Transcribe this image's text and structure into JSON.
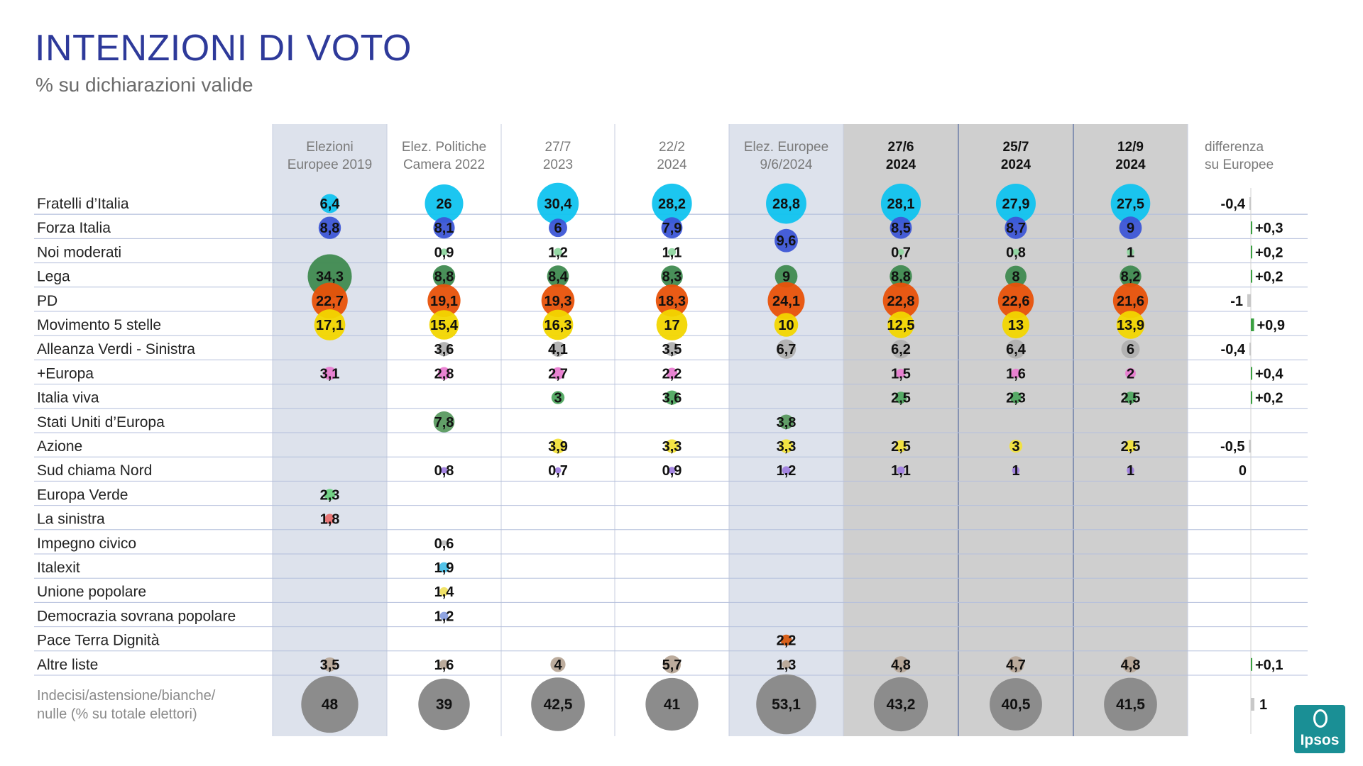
{
  "title": "INTENZIONI DI VOTO",
  "subtitle": "% su dichiarazioni valide",
  "logo": {
    "text": "Ipsos",
    "color": "#1a8f95"
  },
  "chart_data": {
    "type": "table",
    "columns": [
      {
        "line1": "Elezioni",
        "line2": "Europee 2019",
        "bold": false
      },
      {
        "line1": "Elez. Politiche",
        "line2": "Camera 2022",
        "bold": false
      },
      {
        "line1": "27/7",
        "line2": "2023",
        "bold": false
      },
      {
        "line1": "22/2",
        "line2": "2024",
        "bold": false
      },
      {
        "line1": "Elez. Europee",
        "line2": "9/6/2024",
        "bold": false
      },
      {
        "line1": "27/6",
        "line2": "2024",
        "bold": true
      },
      {
        "line1": "25/7",
        "line2": "2024",
        "bold": true
      },
      {
        "line1": "12/9",
        "line2": "2024",
        "bold": true
      }
    ],
    "diff_header": {
      "line1": "differenza",
      "line2": "su Europee"
    },
    "rows": [
      {
        "name": "Fratelli d’Italia",
        "color": "#10c3ef",
        "values": [
          "6,4",
          "26",
          "30,4",
          "28,2",
          "28,8",
          "28,1",
          "27,9",
          "27,5"
        ],
        "diff": "-0,4"
      },
      {
        "name": "Forza Italia",
        "color": "#3d56d6",
        "values": [
          "8,8",
          "8,1",
          "6",
          "7,9",
          "9,6",
          "8,5",
          "8,7",
          "9"
        ],
        "diff": "+0,3"
      },
      {
        "name": "Noi moderati",
        "color": "#8fd6a0",
        "values": [
          "",
          "0,9",
          "1,2",
          "1,1",
          "",
          "0,7",
          "0,8",
          "1"
        ],
        "diff": "+0,2"
      },
      {
        "name": "Lega",
        "color": "#3f8a50",
        "values": [
          "34,3",
          "8,8",
          "8,4",
          "8,3",
          "9",
          "8,8",
          "8",
          "8,2"
        ],
        "diff": "+0,2"
      },
      {
        "name": "PD",
        "color": "#e8520a",
        "values": [
          "22,7",
          "19,1",
          "19,3",
          "18,3",
          "24,1",
          "22,8",
          "22,6",
          "21,6"
        ],
        "diff": "-1"
      },
      {
        "name": "Movimento 5 stelle",
        "color": "#f2d600",
        "values": [
          "17,1",
          "15,4",
          "16,3",
          "17",
          "10",
          "12,5",
          "13",
          "13,9"
        ],
        "diff": "+0,9"
      },
      {
        "name": "Alleanza Verdi - Sinistra",
        "color": "#b0b0b0",
        "values": [
          "",
          "3,6",
          "4,1",
          "3,5",
          "6,7",
          "6,2",
          "6,4",
          "6"
        ],
        "diff": "-0,4"
      },
      {
        "name": "+Europa",
        "color": "#e87cd0",
        "values": [
          "3,1",
          "2,8",
          "2,7",
          "2,2",
          "",
          "1,5",
          "1,6",
          "2"
        ],
        "diff": "+0,4"
      },
      {
        "name": "Italia viva",
        "color": "#4fa860",
        "values": [
          "",
          "",
          "3",
          "3,6",
          "",
          "2,5",
          "2,3",
          "2,5"
        ],
        "diff": "+0,2"
      },
      {
        "name": "Stati Uniti d’Europa",
        "color": "#5a9a60",
        "values": [
          "",
          "7,8",
          "",
          "",
          "3,8",
          "",
          "",
          ""
        ],
        "diff": ""
      },
      {
        "name": "Azione",
        "color": "#f2e23a",
        "values": [
          "",
          "",
          "3,9",
          "3,3",
          "3,3",
          "2,5",
          "3",
          "2,5"
        ],
        "diff": "-0,5"
      },
      {
        "name": "Sud chiama Nord",
        "color": "#a080e0",
        "values": [
          "",
          "0,8",
          "0,7",
          "0,9",
          "1,2",
          "1,1",
          "1",
          "1"
        ],
        "diff": "0"
      },
      {
        "name": "Europa Verde",
        "color": "#6cd080",
        "values": [
          "2,3",
          "",
          "",
          "",
          "",
          "",
          "",
          ""
        ],
        "diff": ""
      },
      {
        "name": "La sinistra",
        "color": "#e87070",
        "values": [
          "1,8",
          "",
          "",
          "",
          "",
          "",
          "",
          ""
        ],
        "diff": ""
      },
      {
        "name": "Impegno civico",
        "color": "#c0c0c0",
        "values": [
          "",
          "0,6",
          "",
          "",
          "",
          "",
          "",
          ""
        ],
        "diff": ""
      },
      {
        "name": "Italexit",
        "color": "#4ac0e8",
        "values": [
          "",
          "1,9",
          "",
          "",
          "",
          "",
          "",
          ""
        ],
        "diff": ""
      },
      {
        "name": "Unione popolare",
        "color": "#f0e060",
        "values": [
          "",
          "1,4",
          "",
          "",
          "",
          "",
          "",
          ""
        ],
        "diff": ""
      },
      {
        "name": "Democrazia sovrana popolare",
        "color": "#8aa0e0",
        "values": [
          "",
          "1,2",
          "",
          "",
          "",
          "",
          "",
          ""
        ],
        "diff": ""
      },
      {
        "name": "Pace Terra Dignità",
        "color": "#d85a10",
        "values": [
          "",
          "",
          "",
          "",
          "2,2",
          "",
          "",
          ""
        ],
        "diff": ""
      },
      {
        "name": "Altre liste",
        "color": "#b8a898",
        "values": [
          "3,5",
          "1,6",
          "4",
          "5,7",
          "1,3",
          "4,8",
          "4,7",
          "4,8"
        ],
        "diff": "+0,1"
      }
    ],
    "last_row": {
      "line1": "Indecisi/astensione/bianche/",
      "line2": "nulle (% su totale elettori)",
      "color": "#8c8c8c",
      "values": [
        "48",
        "39",
        "42,5",
        "41",
        "53,1",
        "43,2",
        "40,5",
        "41,5"
      ],
      "diff": "1"
    },
    "colors": {
      "diff_positive": "#3aa040",
      "diff_negative": "#c8c8c8",
      "shade_light": "#dde2ec",
      "shade_dark": "#cfcfcf",
      "header_text": "#7a7a7a"
    }
  }
}
